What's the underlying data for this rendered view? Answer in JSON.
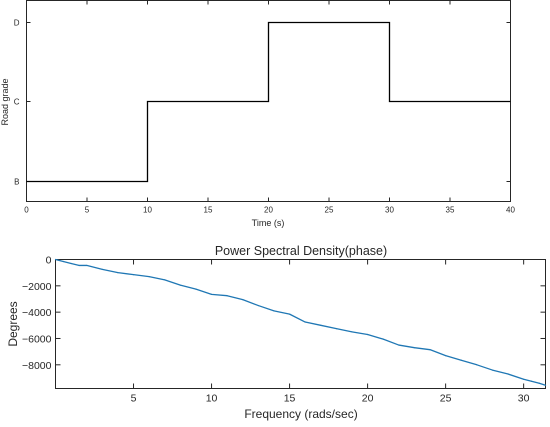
{
  "chart_data": [
    {
      "type": "line",
      "title": "",
      "xlabel": "Time (s)",
      "ylabel": "Road grade",
      "xlim": [
        0,
        40
      ],
      "ylim": [
        "B",
        "D"
      ],
      "x_ticks": [
        0,
        5,
        10,
        15,
        20,
        25,
        30,
        35,
        40
      ],
      "y_categories": [
        "B",
        "C",
        "D"
      ],
      "step": true,
      "series": [
        {
          "name": "",
          "color": "#000000",
          "x": [
            0,
            10,
            10,
            20,
            20,
            30,
            30,
            40
          ],
          "y": [
            "B",
            "B",
            "C",
            "C",
            "D",
            "D",
            "C",
            "C"
          ]
        }
      ],
      "grid": false,
      "legend": "none"
    },
    {
      "type": "line",
      "title": "Power Spectral Density(phase)",
      "xlabel": "Frequency (rads/sec)",
      "ylabel": "Degrees",
      "xlim": [
        0,
        31.4
      ],
      "ylim": [
        -9800,
        0
      ],
      "x_ticks": [
        5,
        10,
        15,
        20,
        25,
        30
      ],
      "y_ticks": [
        0,
        -2000,
        -4000,
        -6000,
        -8000
      ],
      "series": [
        {
          "name": "",
          "color": "#1f77b4",
          "x": [
            0,
            0.5,
            1,
            1.5,
            2,
            3,
            4,
            5,
            6,
            7,
            8,
            9,
            10,
            11,
            12,
            13,
            14,
            15,
            16,
            17,
            18,
            19,
            20,
            21,
            22,
            23,
            24,
            25,
            26,
            27,
            28,
            29,
            30,
            30.5,
            31,
            31.4
          ],
          "y": [
            0,
            -150,
            -300,
            -450,
            -450,
            -750,
            -1000,
            -1150,
            -1300,
            -1550,
            -1950,
            -2250,
            -2650,
            -2750,
            -3050,
            -3500,
            -3900,
            -4150,
            -4750,
            -5000,
            -5250,
            -5500,
            -5700,
            -6050,
            -6500,
            -6700,
            -6850,
            -7300,
            -7650,
            -8000,
            -8400,
            -8700,
            -9100,
            -9250,
            -9400,
            -9550
          ]
        }
      ],
      "grid": false,
      "legend": "none"
    }
  ]
}
